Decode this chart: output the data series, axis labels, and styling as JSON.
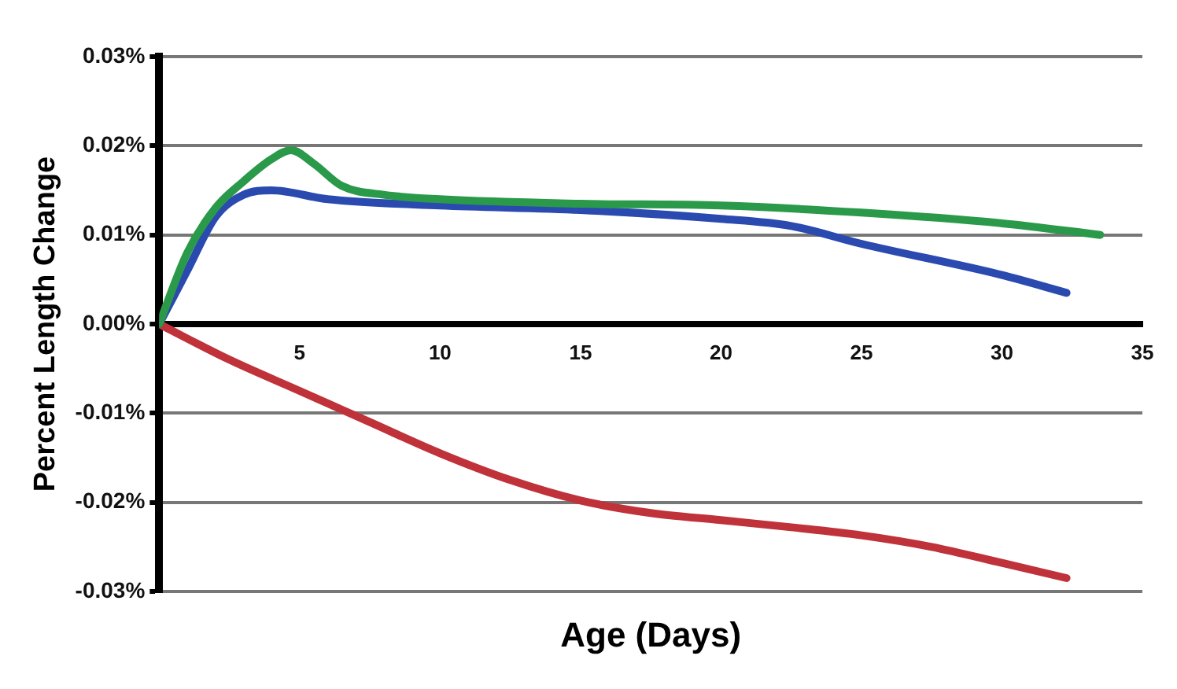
{
  "chart_data": {
    "type": "line",
    "xlabel": "Age (Days)",
    "ylabel": "Percent Length Change",
    "xlim": [
      0,
      35
    ],
    "xticks": [
      5,
      10,
      15,
      20,
      25,
      30,
      35
    ],
    "ylim": [
      -0.03,
      0.03
    ],
    "yticks": [
      {
        "value": -0.03,
        "label": "-0.03%"
      },
      {
        "value": -0.02,
        "label": "-0.02%"
      },
      {
        "value": -0.01,
        "label": "-0.01%"
      },
      {
        "value": 0,
        "label": "0.00%"
      },
      {
        "value": 0.01,
        "label": "0.01%"
      },
      {
        "value": 0.02,
        "label": "0.02%"
      },
      {
        "value": 0.03,
        "label": "0.03%"
      }
    ],
    "grid": "y",
    "legend": false,
    "marker": "none",
    "line_style": "solid",
    "series": [
      {
        "color": "#2a9a4a",
        "x": [
          0,
          1,
          2,
          3,
          4,
          4.7,
          5.5,
          6.5,
          8,
          10,
          15,
          20,
          25,
          30,
          33.5
        ],
        "values": [
          0,
          0.008,
          0.013,
          0.016,
          0.0185,
          0.0195,
          0.018,
          0.0155,
          0.0145,
          0.014,
          0.0135,
          0.0133,
          0.0125,
          0.0113,
          0.01
        ]
      },
      {
        "color": "#2a4ab0",
        "x": [
          0,
          1,
          2,
          3,
          4,
          6,
          10,
          15,
          20,
          22.5,
          25,
          30,
          32.3
        ],
        "values": [
          0,
          0.006,
          0.012,
          0.0145,
          0.015,
          0.014,
          0.0133,
          0.0128,
          0.0118,
          0.011,
          0.009,
          0.0055,
          0.0035
        ]
      },
      {
        "color": "#c0323a",
        "x": [
          0,
          2.5,
          5,
          7.5,
          10,
          12.5,
          15,
          17.5,
          20,
          22.5,
          25,
          27.5,
          30,
          32.3
        ],
        "values": [
          0,
          -0.004,
          -0.0075,
          -0.011,
          -0.0145,
          -0.0175,
          -0.0198,
          -0.0212,
          -0.022,
          -0.0228,
          -0.0237,
          -0.025,
          -0.0268,
          -0.0285
        ]
      }
    ]
  }
}
